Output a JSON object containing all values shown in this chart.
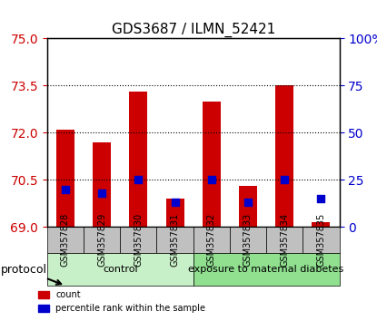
{
  "title": "GDS3687 / ILMN_52421",
  "samples": [
    "GSM357828",
    "GSM357829",
    "GSM357830",
    "GSM357831",
    "GSM357832",
    "GSM357833",
    "GSM357834",
    "GSM357835"
  ],
  "red_values": [
    72.1,
    71.7,
    73.3,
    69.9,
    73.0,
    70.3,
    73.5,
    69.15
  ],
  "blue_values": [
    20.0,
    18.0,
    25.0,
    13.0,
    25.0,
    13.0,
    25.0,
    15.0
  ],
  "y_min": 69,
  "y_max": 75,
  "y_ticks": [
    69,
    70.5,
    72,
    73.5,
    75
  ],
  "y2_ticks": [
    0,
    25,
    50,
    75,
    100
  ],
  "groups": [
    {
      "label": "control",
      "indices": [
        0,
        1,
        2,
        3
      ],
      "color": "#c8f0c8"
    },
    {
      "label": "exposure to maternal diabetes",
      "indices": [
        4,
        5,
        6,
        7
      ],
      "color": "#90e090"
    }
  ],
  "protocol_label": "protocol",
  "red_color": "#cc0000",
  "blue_color": "#0000cc",
  "bar_width": 0.5,
  "grid_color": "#000000",
  "tick_label_color_left": "#cc0000",
  "tick_label_color_right": "#0000cc",
  "xlabel_area_color": "#c0c0c0",
  "legend_count_label": "count",
  "legend_pct_label": "percentile rank within the sample"
}
